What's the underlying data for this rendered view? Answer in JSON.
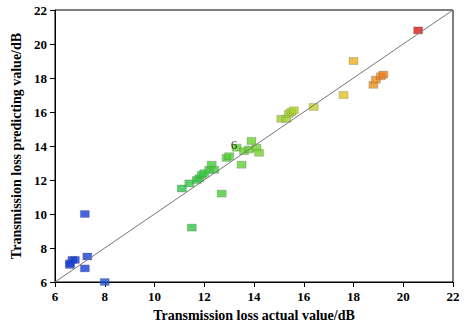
{
  "chart_data": {
    "type": "scatter",
    "x_label": "Transmission loss actual value/dB",
    "y_label": "Transmission loss predicting value/dB",
    "x": [
      6.6,
      6.7,
      6.8,
      7.2,
      7.2,
      7.3,
      8.0,
      6.6,
      11.1,
      11.4,
      11.5,
      11.7,
      11.8,
      11.9,
      12.0,
      12.2,
      12.3,
      12.4,
      12.7,
      12.9,
      13.0,
      13.3,
      13.5,
      13.6,
      13.8,
      13.9,
      14.1,
      14.2,
      15.1,
      15.3,
      15.4,
      15.5,
      15.6,
      16.4,
      17.6,
      18.0,
      18.8,
      18.9,
      19.1,
      19.2,
      20.6
    ],
    "values": [
      7.0,
      7.3,
      7.3,
      10.0,
      6.8,
      7.5,
      6.0,
      7.1,
      11.5,
      11.8,
      9.2,
      12.0,
      12.1,
      12.3,
      12.4,
      12.6,
      12.9,
      12.6,
      11.2,
      13.3,
      13.4,
      13.9,
      12.9,
      13.7,
      13.8,
      14.3,
      13.9,
      13.6,
      15.6,
      15.6,
      15.9,
      16.0,
      16.1,
      16.3,
      17.0,
      19.0,
      17.6,
      17.9,
      18.1,
      18.2,
      20.8
    ],
    "colors": [
      "#1a3fd6",
      "#1a3fd6",
      "#1a3fd6",
      "#1a3fd6",
      "#1a3fd6",
      "#1a3fd6",
      "#1e52d0",
      "#1a3fd6",
      "#2fc44a",
      "#33c646",
      "#33c646",
      "#36c844",
      "#36c844",
      "#38c942",
      "#3ac940",
      "#3fcb3e",
      "#44cb3c",
      "#44cb3c",
      "#4ccc3a",
      "#52cd38",
      "#56cd36",
      "#5ecf34",
      "#62cf34",
      "#66d032",
      "#6ad030",
      "#6ed030",
      "#74d12e",
      "#76d12e",
      "#9ad22c",
      "#a0d22c",
      "#a4d22a",
      "#a8d22a",
      "#acd22a",
      "#c4d028",
      "#e0c024",
      "#e8b022",
      "#e89020",
      "#e88c20",
      "#e8861e",
      "#e8801e",
      "#d81a10"
    ],
    "marker": "square",
    "annotations": [
      {
        "text": "6",
        "x": 13.2,
        "y": 14.1
      }
    ],
    "xlim": [
      6,
      22
    ],
    "xticks": [
      6,
      8,
      10,
      12,
      14,
      16,
      18,
      20,
      22
    ],
    "ylim": [
      6,
      22
    ],
    "yticks": [
      6,
      8,
      10,
      12,
      14,
      16,
      18,
      20,
      22
    ],
    "grid": false
  }
}
